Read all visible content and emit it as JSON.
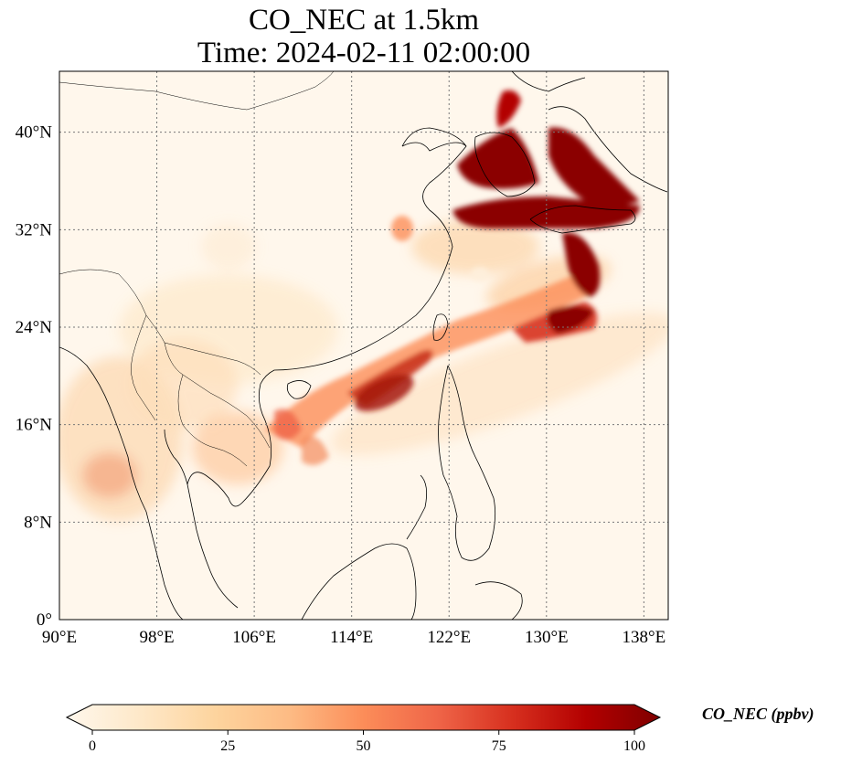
{
  "figure": {
    "title_line1": "CO_NEC at 1.5km",
    "title_line2": "Time: 2024-02-11 02:00:00"
  },
  "map": {
    "projection": "plate-carree",
    "lon_range": [
      90,
      140
    ],
    "lat_range": [
      0,
      45
    ],
    "gridlines": "dotted",
    "lon_ticks": [
      {
        "value": 90,
        "label": "90°E"
      },
      {
        "value": 98,
        "label": "98°E"
      },
      {
        "value": 106,
        "label": "106°E"
      },
      {
        "value": 114,
        "label": "114°E"
      },
      {
        "value": 122,
        "label": "122°E"
      },
      {
        "value": 130,
        "label": "130°E"
      },
      {
        "value": 138,
        "label": "138°E"
      }
    ],
    "lat_ticks": [
      {
        "value": 0,
        "label": "0°"
      },
      {
        "value": 8,
        "label": "8°N"
      },
      {
        "value": 16,
        "label": "16°N"
      },
      {
        "value": 24,
        "label": "24°N"
      },
      {
        "value": 32,
        "label": "32°N"
      },
      {
        "value": 40,
        "label": "40°N"
      }
    ]
  },
  "colorbar": {
    "label": "CO_NEC (ppbv)",
    "colormap": "OrRd",
    "colors": [
      "#fff7ec",
      "#fee8c8",
      "#fdd49e",
      "#fdbb84",
      "#fc8d59",
      "#ef6548",
      "#d7301f",
      "#b30000",
      "#7f0000"
    ],
    "range": [
      0,
      100
    ],
    "extend": "both",
    "ticks": [
      {
        "value": 0,
        "label": "0"
      },
      {
        "value": 25,
        "label": "25"
      },
      {
        "value": 50,
        "label": "50"
      },
      {
        "value": 75,
        "label": "75"
      },
      {
        "value": 100,
        "label": "100"
      }
    ]
  }
}
